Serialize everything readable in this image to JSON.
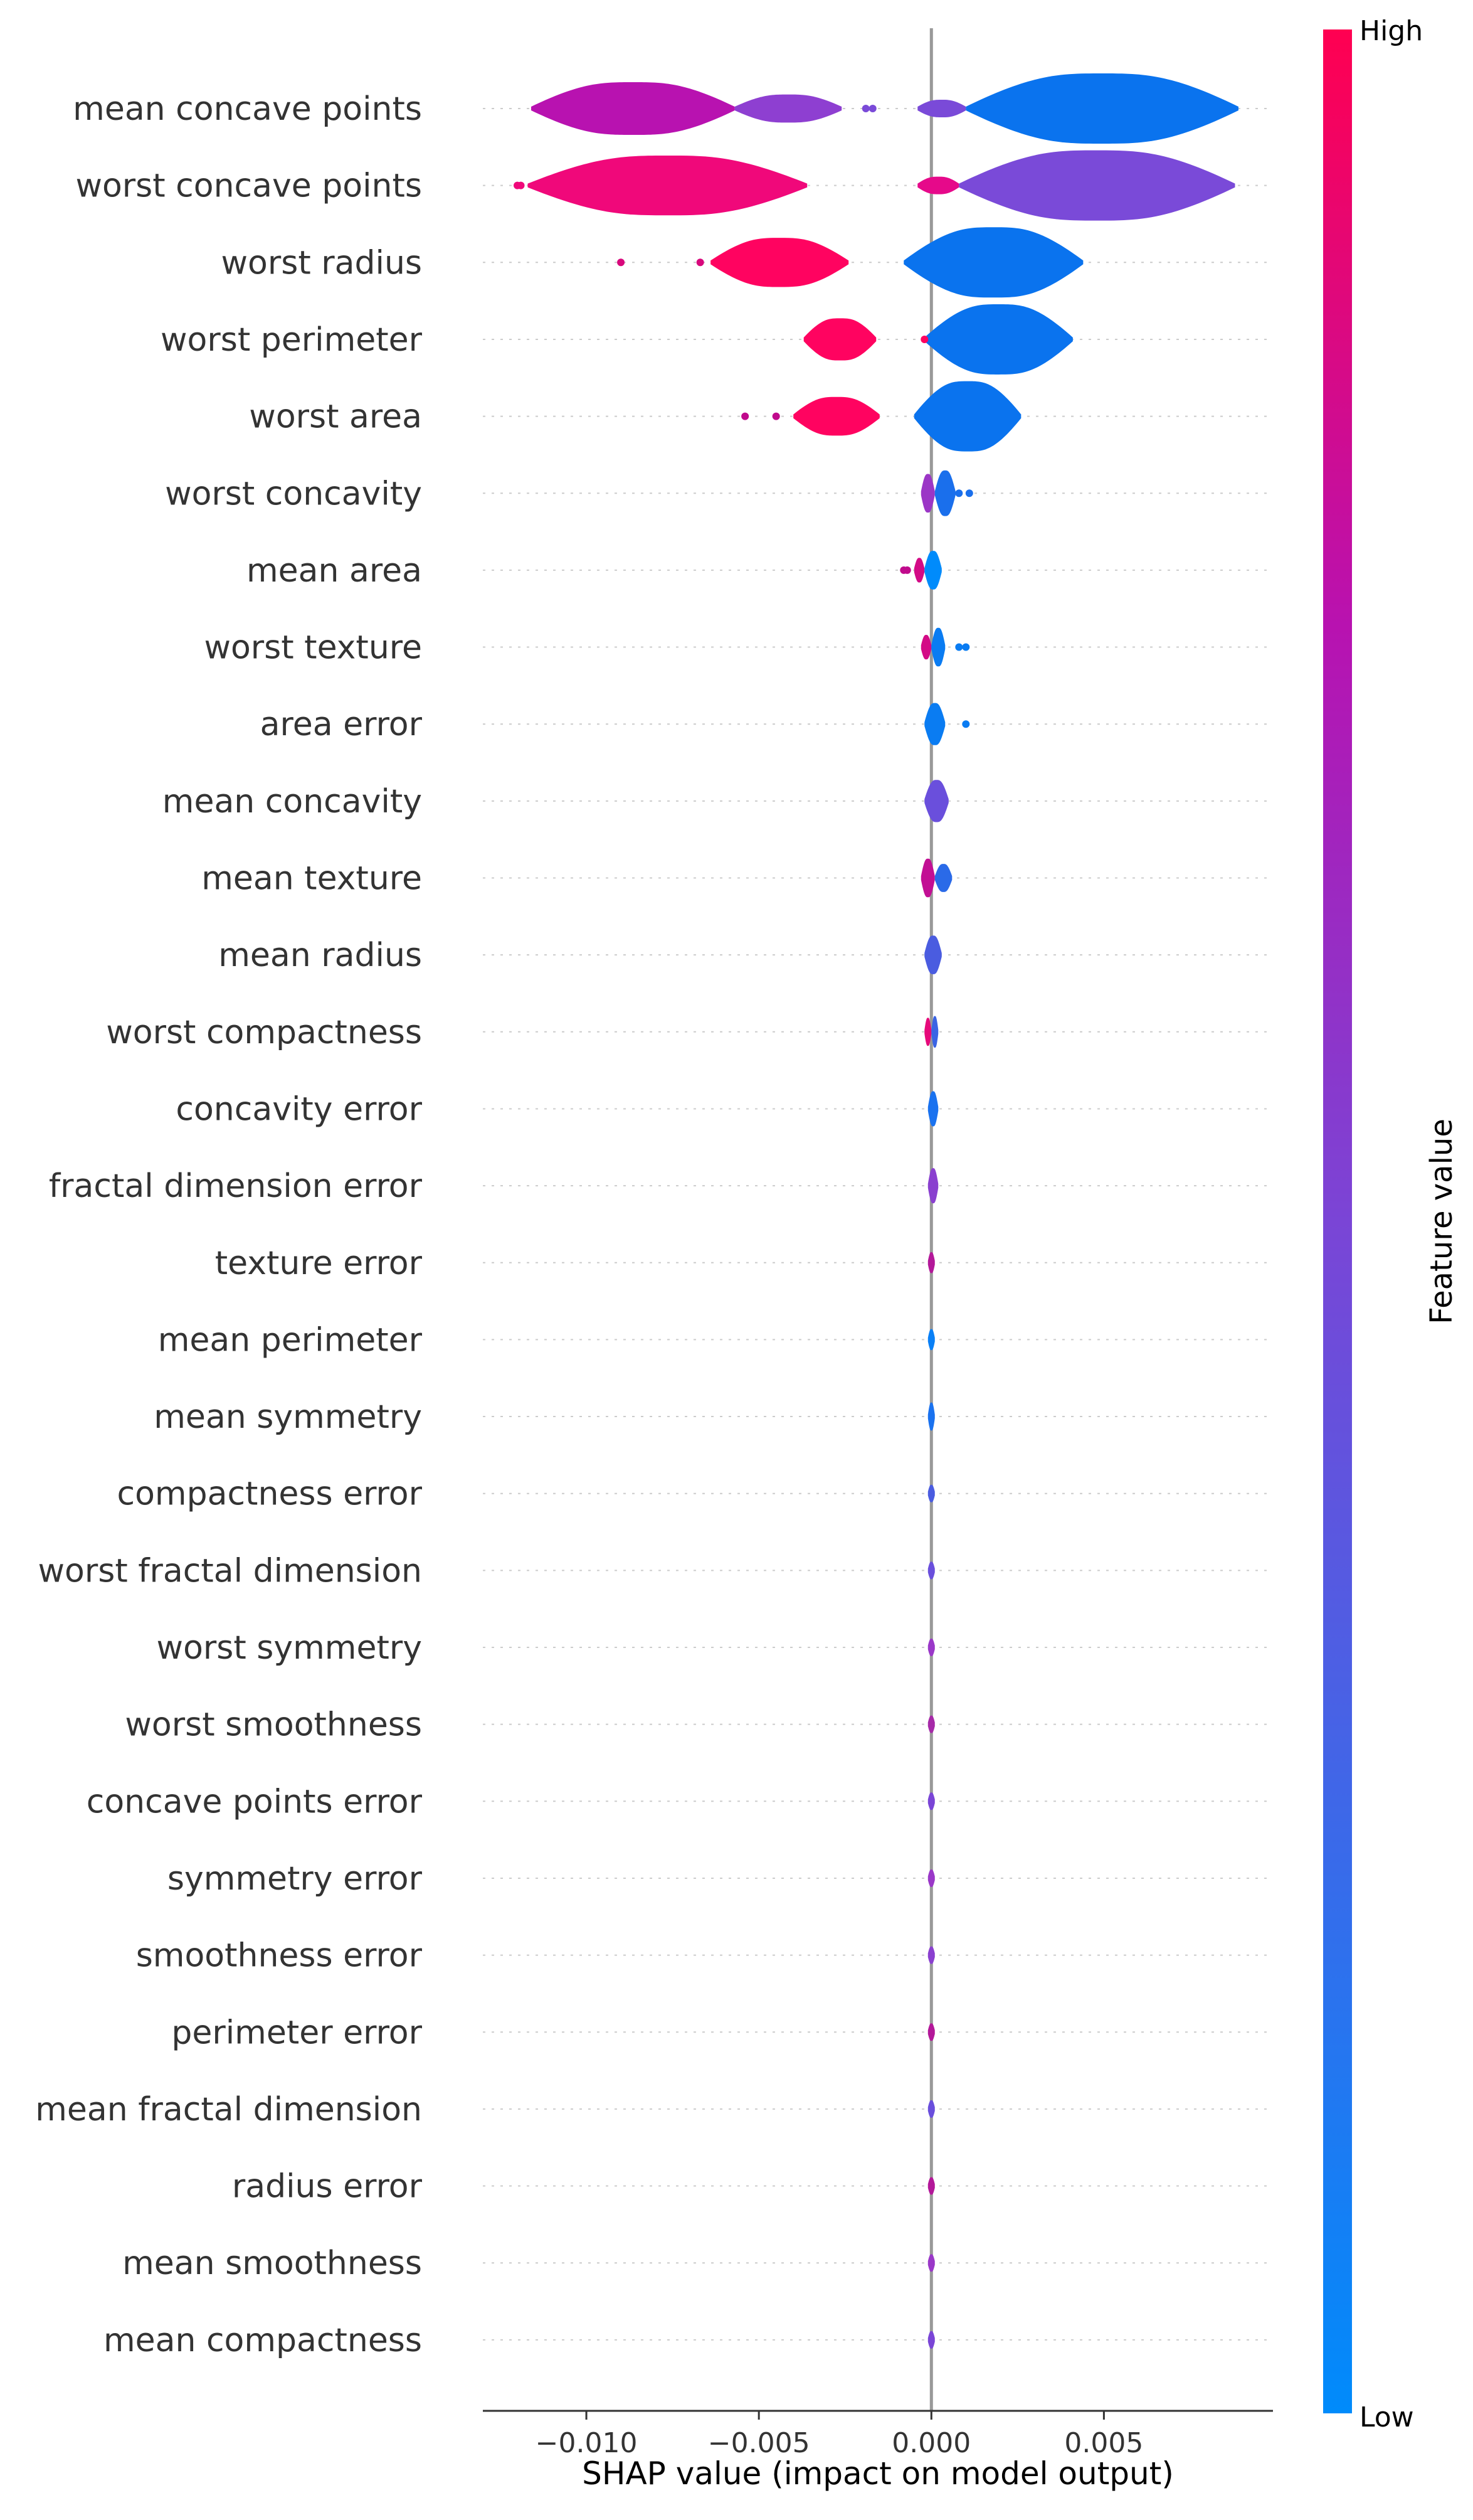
{
  "chart_data": {
    "type": "violin",
    "title": "",
    "xlabel": "SHAP value (impact on model output)",
    "ylabel": "",
    "xlim": [
      -0.013,
      0.0099
    ],
    "x_ticks": [
      {
        "value": -0.01,
        "label": "−0.010"
      },
      {
        "value": -0.005,
        "label": "−0.005"
      },
      {
        "value": 0.0,
        "label": "0.000"
      },
      {
        "value": 0.005,
        "label": "0.005"
      }
    ],
    "colorbar": {
      "title": "Feature value",
      "high_label": "High",
      "low_label": "Low",
      "high_color": "#ff0051",
      "low_color": "#008bfb"
    },
    "features": [
      {
        "name": "mean concave points",
        "segments": [
          {
            "start": -0.0116,
            "end": -0.0057,
            "width": 0.75,
            "color": "#b812b0"
          },
          {
            "start": -0.0057,
            "end": -0.0026,
            "width": 0.4,
            "color": "#8e3fd1"
          },
          {
            "start": -0.0004,
            "end": 0.001,
            "width": 0.25,
            "color": "#7a4ad8"
          },
          {
            "start": 0.001,
            "end": 0.0089,
            "width": 1.0,
            "color": "#0a73ee"
          }
        ],
        "points": [
          {
            "x": -0.0019,
            "color": "#7a4ad8"
          },
          {
            "x": -0.0017,
            "color": "#7a4ad8"
          }
        ]
      },
      {
        "name": "worst concave points",
        "segments": [
          {
            "start": -0.0117,
            "end": -0.0036,
            "width": 0.85,
            "color": "#f0087a"
          },
          {
            "start": -0.0004,
            "end": 0.0008,
            "width": 0.25,
            "color": "#e6098a"
          },
          {
            "start": 0.0008,
            "end": 0.0088,
            "width": 1.0,
            "color": "#7a4ad8"
          }
        ],
        "points": [
          {
            "x": -0.012,
            "color": "#f0087a"
          },
          {
            "x": -0.0119,
            "color": "#f0087a"
          }
        ]
      },
      {
        "name": "worst radius",
        "segments": [
          {
            "start": -0.0064,
            "end": -0.0024,
            "width": 0.7,
            "color": "#ff0360"
          },
          {
            "start": -0.0008,
            "end": 0.0044,
            "width": 1.0,
            "color": "#0a73ee"
          }
        ],
        "points": [
          {
            "x": -0.009,
            "color": "#d8087c"
          },
          {
            "x": -0.0067,
            "color": "#d8087c"
          }
        ]
      },
      {
        "name": "worst perimeter",
        "segments": [
          {
            "start": -0.0037,
            "end": -0.0016,
            "width": 0.6,
            "color": "#ff0360"
          },
          {
            "start": -0.0002,
            "end": 0.0041,
            "width": 1.0,
            "color": "#0a73ee"
          }
        ],
        "points": [
          {
            "x": -0.0002,
            "color": "#ff0360"
          }
        ]
      },
      {
        "name": "worst area",
        "segments": [
          {
            "start": -0.004,
            "end": -0.0015,
            "width": 0.55,
            "color": "#ff0360"
          },
          {
            "start": -0.0005,
            "end": 0.0026,
            "width": 1.0,
            "color": "#0a73ee"
          }
        ],
        "points": [
          {
            "x": -0.0054,
            "color": "#c00a8c"
          },
          {
            "x": -0.0045,
            "color": "#c00a8c"
          }
        ]
      },
      {
        "name": "worst concavity",
        "segments": [
          {
            "start": -0.0003,
            "end": 0.0001,
            "width": 0.55,
            "color": "#9b36c6"
          },
          {
            "start": 0.0001,
            "end": 0.0007,
            "width": 0.65,
            "color": "#1a6fec"
          }
        ],
        "points": [
          {
            "x": 0.0008,
            "color": "#1a6fec"
          },
          {
            "x": 0.0011,
            "color": "#1a6fec"
          }
        ]
      },
      {
        "name": "mean area",
        "segments": [
          {
            "start": -0.0005,
            "end": -0.0002,
            "width": 0.35,
            "color": "#d30a86"
          },
          {
            "start": -0.0002,
            "end": 0.0003,
            "width": 0.55,
            "color": "#008bfb"
          }
        ],
        "points": [
          {
            "x": -0.0008,
            "color": "#c00a8c"
          },
          {
            "x": -0.0007,
            "color": "#c00a8c"
          }
        ]
      },
      {
        "name": "worst texture",
        "segments": [
          {
            "start": -0.0003,
            "end": 0.0,
            "width": 0.35,
            "color": "#d30a86"
          },
          {
            "start": 0.0,
            "end": 0.0004,
            "width": 0.55,
            "color": "#0a7cf2"
          }
        ],
        "points": [
          {
            "x": 0.0008,
            "color": "#0a7cf2"
          },
          {
            "x": 0.001,
            "color": "#0a7cf2"
          }
        ]
      },
      {
        "name": "area error",
        "segments": [
          {
            "start": -0.0002,
            "end": 0.0004,
            "width": 0.6,
            "color": "#0a7cf2"
          }
        ],
        "points": [
          {
            "x": 0.001,
            "color": "#0a7cf2"
          }
        ]
      },
      {
        "name": "mean concavity",
        "segments": [
          {
            "start": -0.0002,
            "end": 0.0005,
            "width": 0.6,
            "color": "#6a4fdc"
          }
        ],
        "points": []
      },
      {
        "name": "mean texture",
        "segments": [
          {
            "start": -0.0003,
            "end": 0.0001,
            "width": 0.55,
            "color": "#c20f94"
          },
          {
            "start": 0.0001,
            "end": 0.0006,
            "width": 0.4,
            "color": "#2a6ae8"
          }
        ],
        "points": []
      },
      {
        "name": "mean radius",
        "segments": [
          {
            "start": -0.0002,
            "end": 0.0003,
            "width": 0.55,
            "color": "#4a5ce0"
          }
        ],
        "points": []
      },
      {
        "name": "worst compactness",
        "segments": [
          {
            "start": -0.0002,
            "end": 0.0,
            "width": 0.4,
            "color": "#e6097a"
          },
          {
            "start": 0.0,
            "end": 0.0002,
            "width": 0.45,
            "color": "#3a64e4"
          }
        ],
        "points": []
      },
      {
        "name": "concavity error",
        "segments": [
          {
            "start": -0.0001,
            "end": 0.0002,
            "width": 0.5,
            "color": "#1a72ef"
          }
        ],
        "points": []
      },
      {
        "name": "fractal dimension error",
        "segments": [
          {
            "start": -0.0001,
            "end": 0.0002,
            "width": 0.5,
            "color": "#8a40cf"
          }
        ],
        "points": []
      },
      {
        "name": "texture error",
        "segments": [
          {
            "start": -0.0001,
            "end": 0.0001,
            "width": 0.3,
            "color": "#b31899"
          }
        ],
        "points": []
      },
      {
        "name": "mean perimeter",
        "segments": [
          {
            "start": -0.0001,
            "end": 0.0001,
            "width": 0.3,
            "color": "#0a80f6"
          }
        ],
        "points": []
      },
      {
        "name": "mean symmetry",
        "segments": [
          {
            "start": -0.0001,
            "end": 0.0001,
            "width": 0.4,
            "color": "#1a72ef"
          }
        ],
        "points": []
      },
      {
        "name": "compactness error",
        "segments": [
          {
            "start": -0.0001,
            "end": 0.0001,
            "width": 0.25,
            "color": "#4a5ce0"
          }
        ],
        "points": []
      },
      {
        "name": "worst fractal dimension",
        "segments": [
          {
            "start": -0.0001,
            "end": 0.0001,
            "width": 0.25,
            "color": "#6a4fdc"
          }
        ],
        "points": []
      },
      {
        "name": "worst symmetry",
        "segments": [
          {
            "start": -0.0001,
            "end": 0.0001,
            "width": 0.25,
            "color": "#9a38c8"
          }
        ],
        "points": []
      },
      {
        "name": "worst smoothness",
        "segments": [
          {
            "start": -0.0001,
            "end": 0.0001,
            "width": 0.25,
            "color": "#a62aa8"
          }
        ],
        "points": []
      },
      {
        "name": "concave points error",
        "segments": [
          {
            "start": -0.0001,
            "end": 0.0001,
            "width": 0.25,
            "color": "#7a45d6"
          }
        ],
        "points": []
      },
      {
        "name": "symmetry error",
        "segments": [
          {
            "start": -0.0001,
            "end": 0.0001,
            "width": 0.25,
            "color": "#9a38c8"
          }
        ],
        "points": []
      },
      {
        "name": "smoothness error",
        "segments": [
          {
            "start": -0.0001,
            "end": 0.0001,
            "width": 0.25,
            "color": "#8a40cf"
          }
        ],
        "points": []
      },
      {
        "name": "perimeter error",
        "segments": [
          {
            "start": -0.0001,
            "end": 0.0001,
            "width": 0.25,
            "color": "#b31899"
          }
        ],
        "points": []
      },
      {
        "name": "mean fractal dimension",
        "segments": [
          {
            "start": -0.0001,
            "end": 0.0001,
            "width": 0.25,
            "color": "#6a4fdc"
          }
        ],
        "points": []
      },
      {
        "name": "radius error",
        "segments": [
          {
            "start": -0.0001,
            "end": 0.0001,
            "width": 0.25,
            "color": "#b31899"
          }
        ],
        "points": []
      },
      {
        "name": "mean smoothness",
        "segments": [
          {
            "start": -0.0001,
            "end": 0.0001,
            "width": 0.25,
            "color": "#9a38c8"
          }
        ],
        "points": []
      },
      {
        "name": "mean compactness",
        "segments": [
          {
            "start": -0.0001,
            "end": 0.0001,
            "width": 0.25,
            "color": "#7a45d6"
          }
        ],
        "points": []
      }
    ]
  }
}
